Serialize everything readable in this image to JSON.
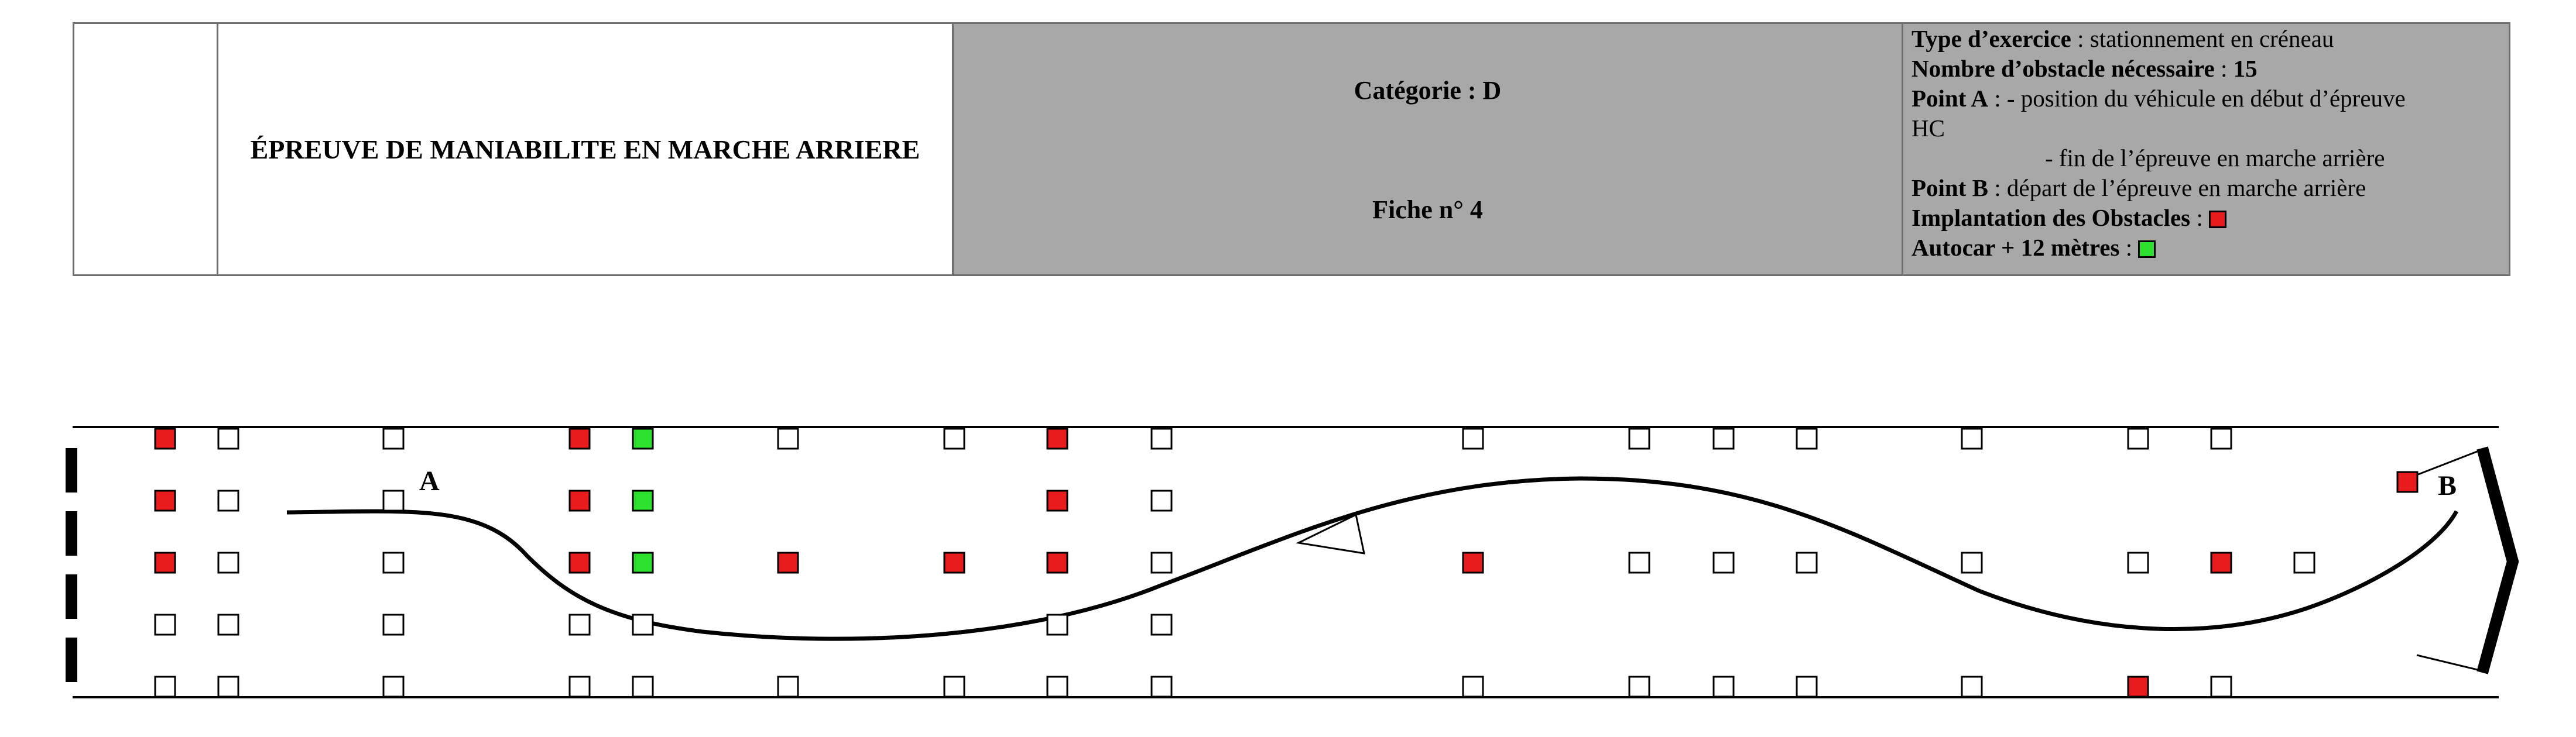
{
  "header": {
    "title": "ÉPREUVE DE MANIABILITE EN MARCHE ARRIERE",
    "category": "Catégorie : D",
    "fiche": "Fiche n° 4",
    "info": {
      "type_label": "Type d’exercice",
      "type_value": " : stationnement en créneau",
      "count_label": "Nombre d’obstacle nécessaire",
      "count_value": "15",
      "pointA_label": "Point A",
      "pointA_value1": " : - position du véhicule en début d’épreuve",
      "pointA_value2": "HC",
      "pointA_value3": "- fin de l’épreuve en marche arrière",
      "pointB_label": "Point B",
      "pointB_value": " : départ de l’épreuve en marche arrière",
      "obstacles_label": "Implantation des Obstacles",
      "autocar_label": "Autocar + 12 mètres"
    }
  },
  "diagram": {
    "point_a": "A",
    "point_b": "B",
    "colors": {
      "obstacle": "#e81c1c",
      "autocar": "#2ee02e",
      "empty": "#ffffff"
    }
  }
}
